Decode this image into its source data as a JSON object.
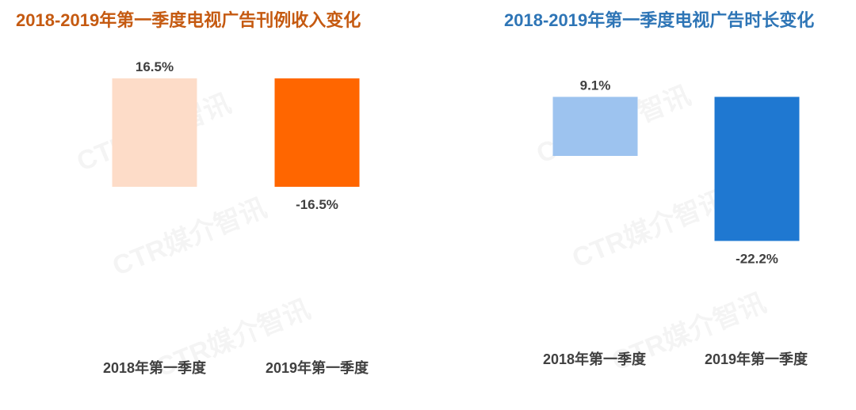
{
  "chart_data": [
    {
      "type": "waterfall",
      "title": "2018-2019年第一季度电视广告刊例收入变化",
      "categories": [
        "2018年第一季度",
        "2019年第一季度"
      ],
      "values": [
        16.5,
        -16.5
      ],
      "value_labels": [
        "16.5%",
        "-16.5%"
      ],
      "colors": [
        "#fddcc8",
        "#ff6600"
      ],
      "title_color": "#c55a11",
      "grid": false,
      "legend": "none"
    },
    {
      "type": "waterfall",
      "title": "2018-2019年第一季度电视广告时长变化",
      "categories": [
        "2018年第一季度",
        "2019年第一季度"
      ],
      "values": [
        9.1,
        -22.2
      ],
      "value_labels": [
        "9.1%",
        "-22.2%"
      ],
      "colors": [
        "#9dc3ef",
        "#1f78d1"
      ],
      "title_color": "#2e75b6",
      "grid": false,
      "legend": "none"
    }
  ],
  "watermark": "CTR媒介智讯"
}
